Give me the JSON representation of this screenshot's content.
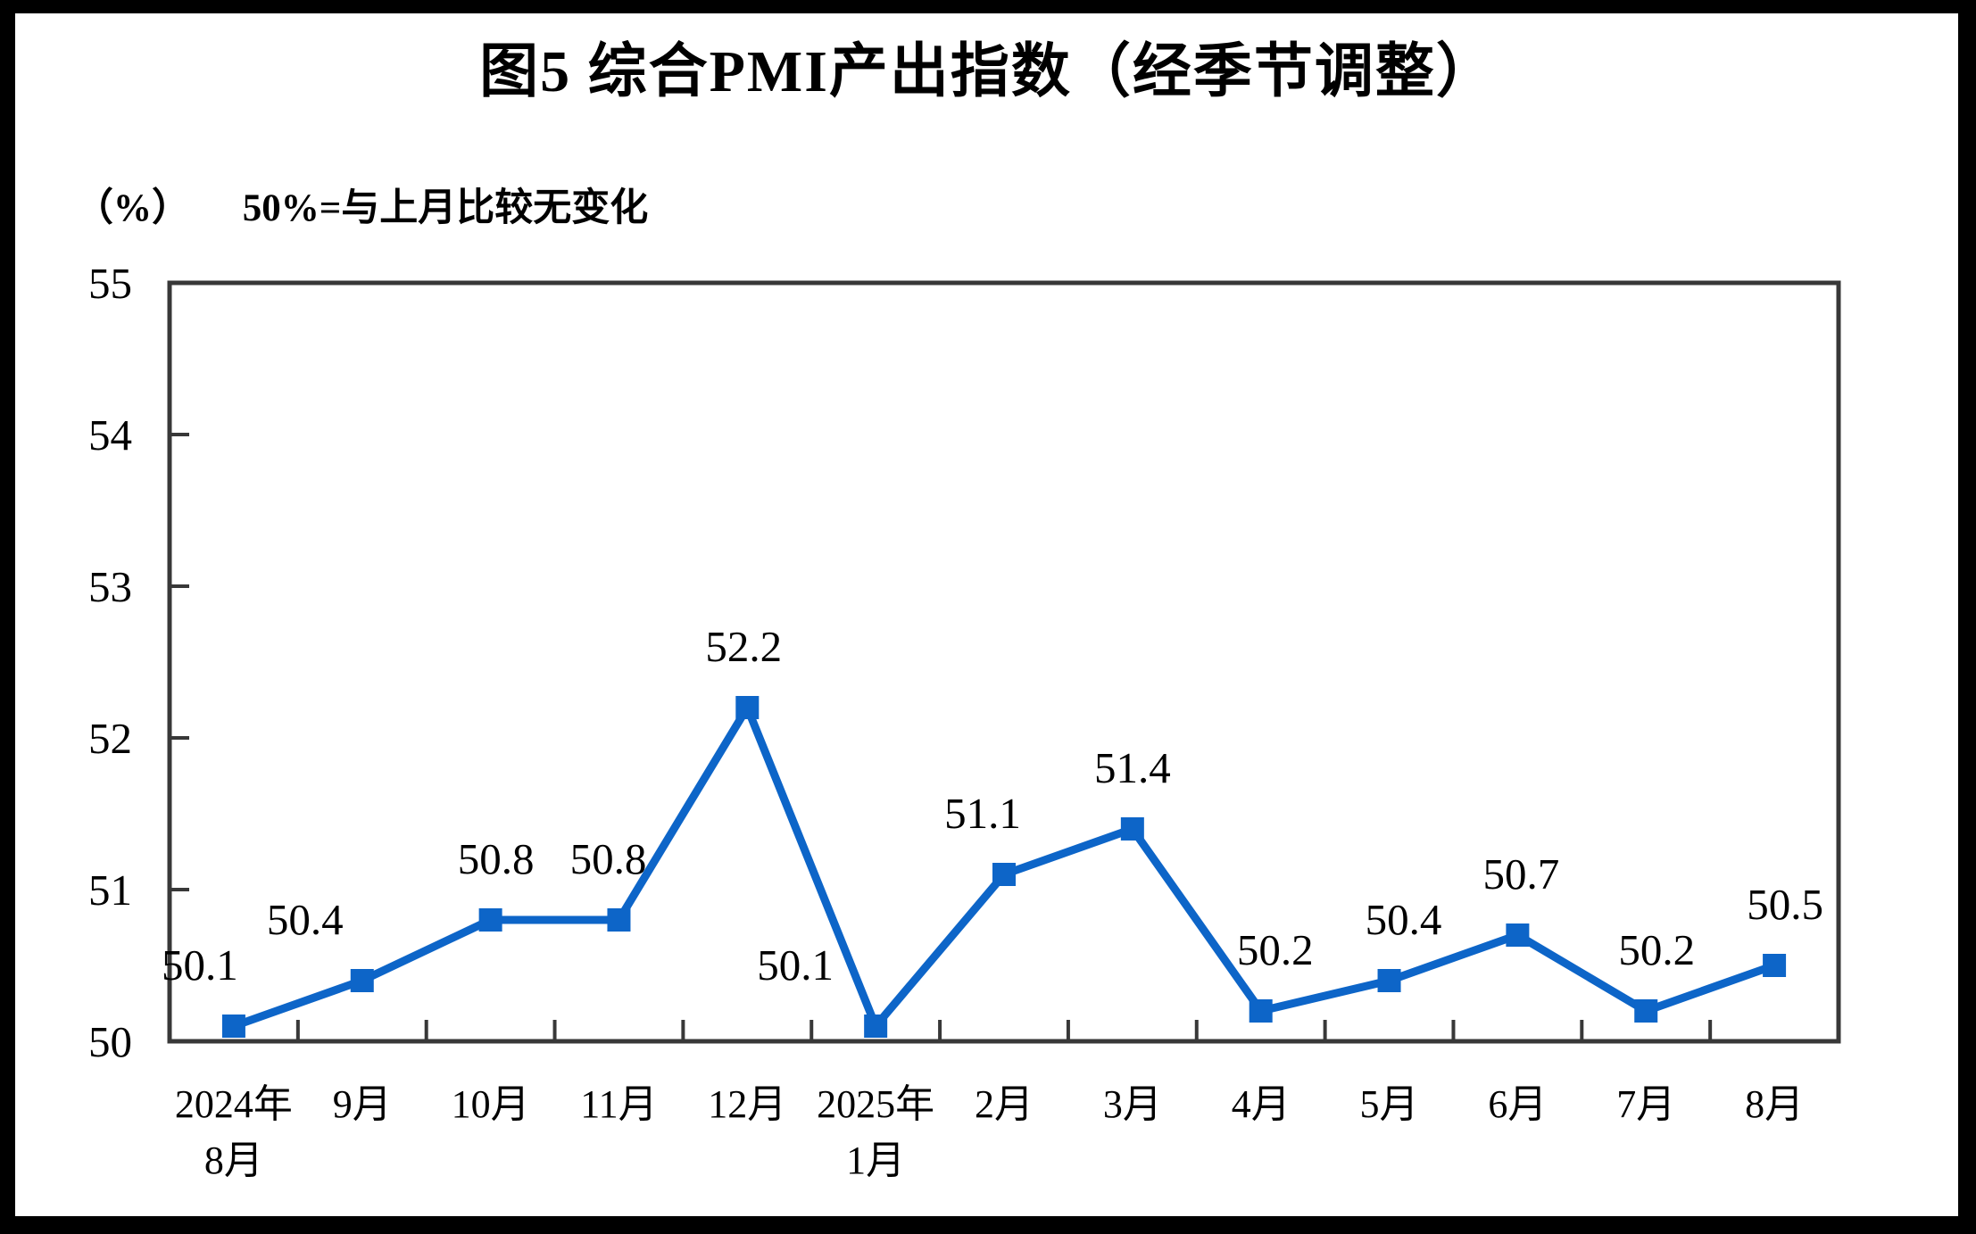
{
  "header": {
    "title": "图5  综合PMI产出指数（经季节调整）",
    "unit_label": "（%）",
    "note": "50%=与上月比较无变化"
  },
  "chart_data": {
    "type": "line",
    "title": "图5 综合PMI产出指数（经季节调整）",
    "subtitle": "50%=与上月比较无变化",
    "ylabel": "（%）",
    "xlabel": "",
    "categories": [
      "2024年\n8月",
      "9月",
      "10月",
      "11月",
      "12月",
      "2025年\n1月",
      "2月",
      "3月",
      "4月",
      "5月",
      "6月",
      "7月",
      "8月"
    ],
    "values": [
      50.1,
      50.4,
      50.8,
      50.8,
      52.2,
      50.1,
      51.1,
      51.4,
      50.2,
      50.4,
      50.7,
      50.2,
      50.5
    ],
    "point_labels": [
      "50.1",
      "50.4",
      "50.8",
      "50.8",
      "52.2",
      "50.1",
      "51.1",
      "51.4",
      "50.2",
      "50.4",
      "50.7",
      "50.2",
      "50.5"
    ],
    "ylim": [
      50,
      55
    ],
    "yticks": [
      50,
      51,
      52,
      53,
      54,
      55
    ],
    "grid": false,
    "legend": null,
    "marker": "square",
    "line_color": "#0d65c8",
    "axis_color": "#383838",
    "label_offsets_x": [
      -38,
      -64,
      6,
      -12,
      -4,
      -90,
      -24,
      0,
      16,
      16,
      4,
      12,
      12
    ]
  }
}
